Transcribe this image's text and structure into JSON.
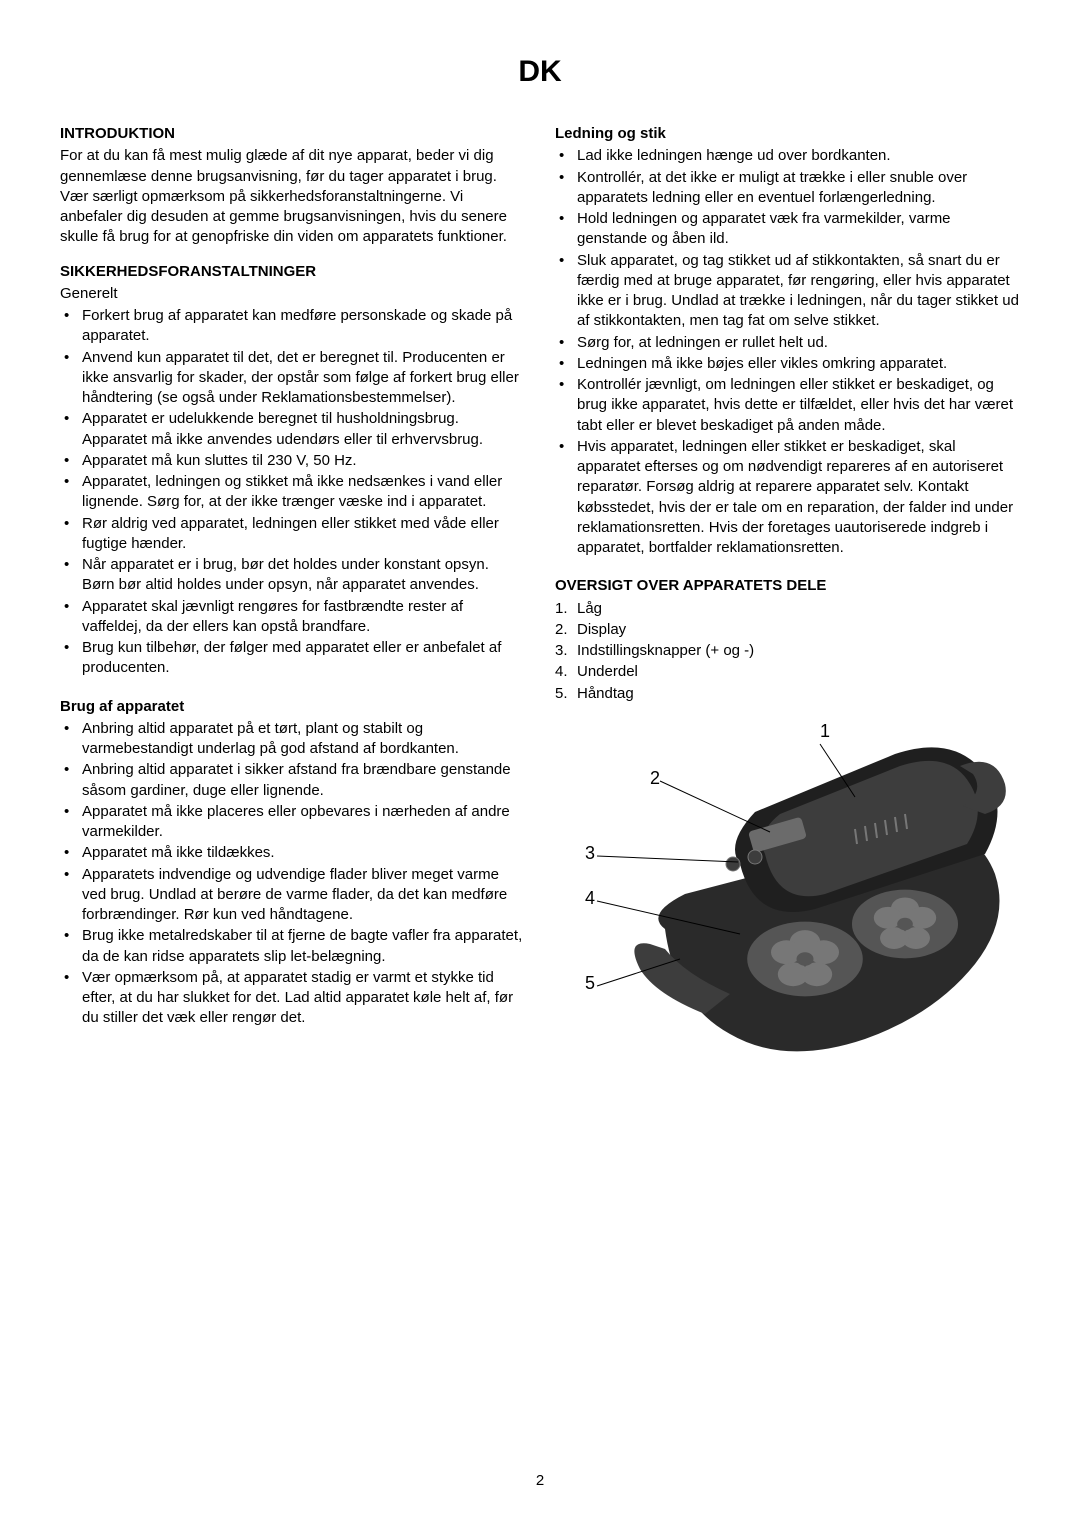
{
  "title": "DK",
  "pageNumber": "2",
  "left": {
    "intro": {
      "heading": "INTRODUKTION",
      "body": "For at du kan få mest mulig glæde af dit nye apparat, beder vi dig gennemlæse denne brugsanvisning, før du tager apparatet i brug. Vær særligt opmærksom på sikkerhedsforanstaltningerne. Vi anbefaler dig desuden at gemme brugsanvisningen, hvis du senere skulle få brug for at genopfriske din viden om apparatets funktioner."
    },
    "safety": {
      "heading": "SIKKERHEDSFORANSTALTNINGER",
      "generalLabel": "Generelt",
      "generalItems": [
        "Forkert brug af apparatet kan medføre personskade og skade på apparatet.",
        "Anvend kun apparatet til det, det er beregnet til. Producenten er ikke ansvarlig for skader, der opstår som følge af forkert brug eller håndtering (se også under Reklamationsbestemmelser).",
        "Apparatet er udelukkende beregnet til husholdningsbrug. Apparatet må ikke anvendes udendørs eller til erhvervsbrug.",
        "Apparatet må kun sluttes til 230 V, 50 Hz.",
        "Apparatet, ledningen og stikket må ikke nedsænkes i vand eller lignende. Sørg for, at der ikke trænger væske ind i apparatet.",
        "Rør aldrig ved apparatet, ledningen eller stikket med våde eller fugtige hænder.",
        "Når apparatet er i brug, bør det holdes under konstant opsyn. Børn bør altid holdes under opsyn, når apparatet anvendes.",
        "Apparatet skal jævnligt rengøres for fastbrændte rester af vaffeldej, da der ellers kan opstå brandfare.",
        "Brug kun tilbehør, der følger med apparatet eller er anbefalet af producenten."
      ],
      "useHeading": "Brug af apparatet",
      "useItems": [
        "Anbring altid apparatet på et tørt, plant og stabilt og varmebestandigt underlag på god afstand af bordkanten.",
        "Anbring altid apparatet i sikker afstand fra brændbare genstande såsom gardiner, duge eller lignende.",
        "Apparatet må ikke placeres eller opbevares i nærheden af andre varmekilder.",
        "Apparatet må ikke tildækkes.",
        "Apparatets indvendige og udvendige flader bliver meget varme ved brug. Undlad at berøre de varme flader, da det kan medføre forbrændinger. Rør kun ved håndtagene.",
        "Brug ikke metalredskaber til at fjerne de bagte vafler fra apparatet, da de kan ridse apparatets slip let-belægning.",
        "Vær opmærksom på, at apparatet stadig er varmt et stykke tid efter, at du har slukket for det. Lad altid apparatet køle helt af, før du stiller det væk eller rengør det."
      ]
    }
  },
  "right": {
    "cord": {
      "heading": "Ledning og stik",
      "items": [
        "Lad ikke ledningen hænge ud over bordkanten.",
        "Kontrollér, at det ikke er muligt at trække i eller snuble over apparatets ledning eller en eventuel forlængerledning.",
        "Hold ledningen og apparatet væk fra varmekilder, varme genstande og åben ild.",
        "Sluk apparatet, og tag stikket ud af stikkontakten, så snart du er færdig med at bruge apparatet, før rengøring, eller hvis apparatet ikke er i brug. Undlad at trække i ledningen, når du tager stikket ud af stikkontakten, men tag fat om selve stikket.",
        "Sørg for, at ledningen er rullet helt ud.",
        "Ledningen må ikke bøjes eller vikles omkring apparatet.",
        "Kontrollér jævnligt, om ledningen eller stikket er beskadiget, og brug ikke apparatet, hvis dette er tilfældet, eller hvis det har været tabt eller er blevet beskadiget på anden måde.",
        "Hvis apparatet, ledningen eller stikket er beskadiget, skal apparatet efterses og om nødvendigt repareres af en autoriseret reparatør. Forsøg aldrig at reparere apparatet selv. Kontakt købsstedet, hvis der er tale om en reparation, der falder ind under reklamationsretten. Hvis der foretages uautoriserede indgreb i apparatet, bortfalder reklamationsretten."
      ]
    },
    "overview": {
      "heading": "OVERSIGT OVER APPARATETS DELE",
      "items": [
        "Låg",
        "Display",
        "Indstillingsknapper (+ og -)",
        "Underdel",
        "Håndtag"
      ]
    },
    "diagram": {
      "labels": [
        "1",
        "2",
        "3",
        "4",
        "5"
      ],
      "colors": {
        "body_dark": "#2a2a2a",
        "body_mid": "#3d3d3d",
        "lid_top": "#1f1f1f",
        "plate": "#555555",
        "plate_light": "#777777",
        "display": "#6b6b6b",
        "line": "#000000"
      }
    }
  }
}
